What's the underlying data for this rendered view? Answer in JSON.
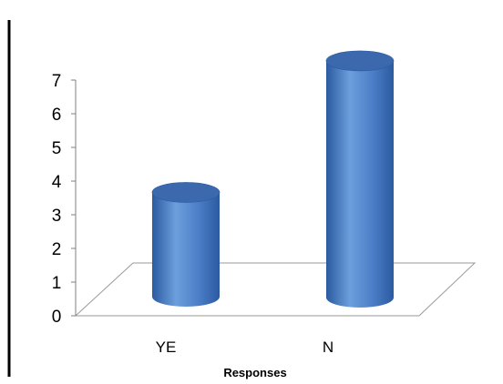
{
  "chart_data": {
    "type": "bar",
    "style": "3d-cylinder",
    "categories": [
      "YE",
      "N"
    ],
    "values": [
      3.5,
      7
    ],
    "xlabel": "Responses",
    "ylabel": "",
    "ylim": [
      0,
      7
    ],
    "yticks": [
      0,
      1,
      2,
      3,
      4,
      5,
      6,
      7
    ],
    "grid": false,
    "legend": "none",
    "colors": {
      "bar_light": "#6c9fdc",
      "bar_mid": "#4a7dc6",
      "bar_dark": "#2b5aa0",
      "bar_top": "#3c68ae",
      "floor_line": "#9a9a9a",
      "axis": "#7f7f7f",
      "left_border": "#000000"
    }
  }
}
